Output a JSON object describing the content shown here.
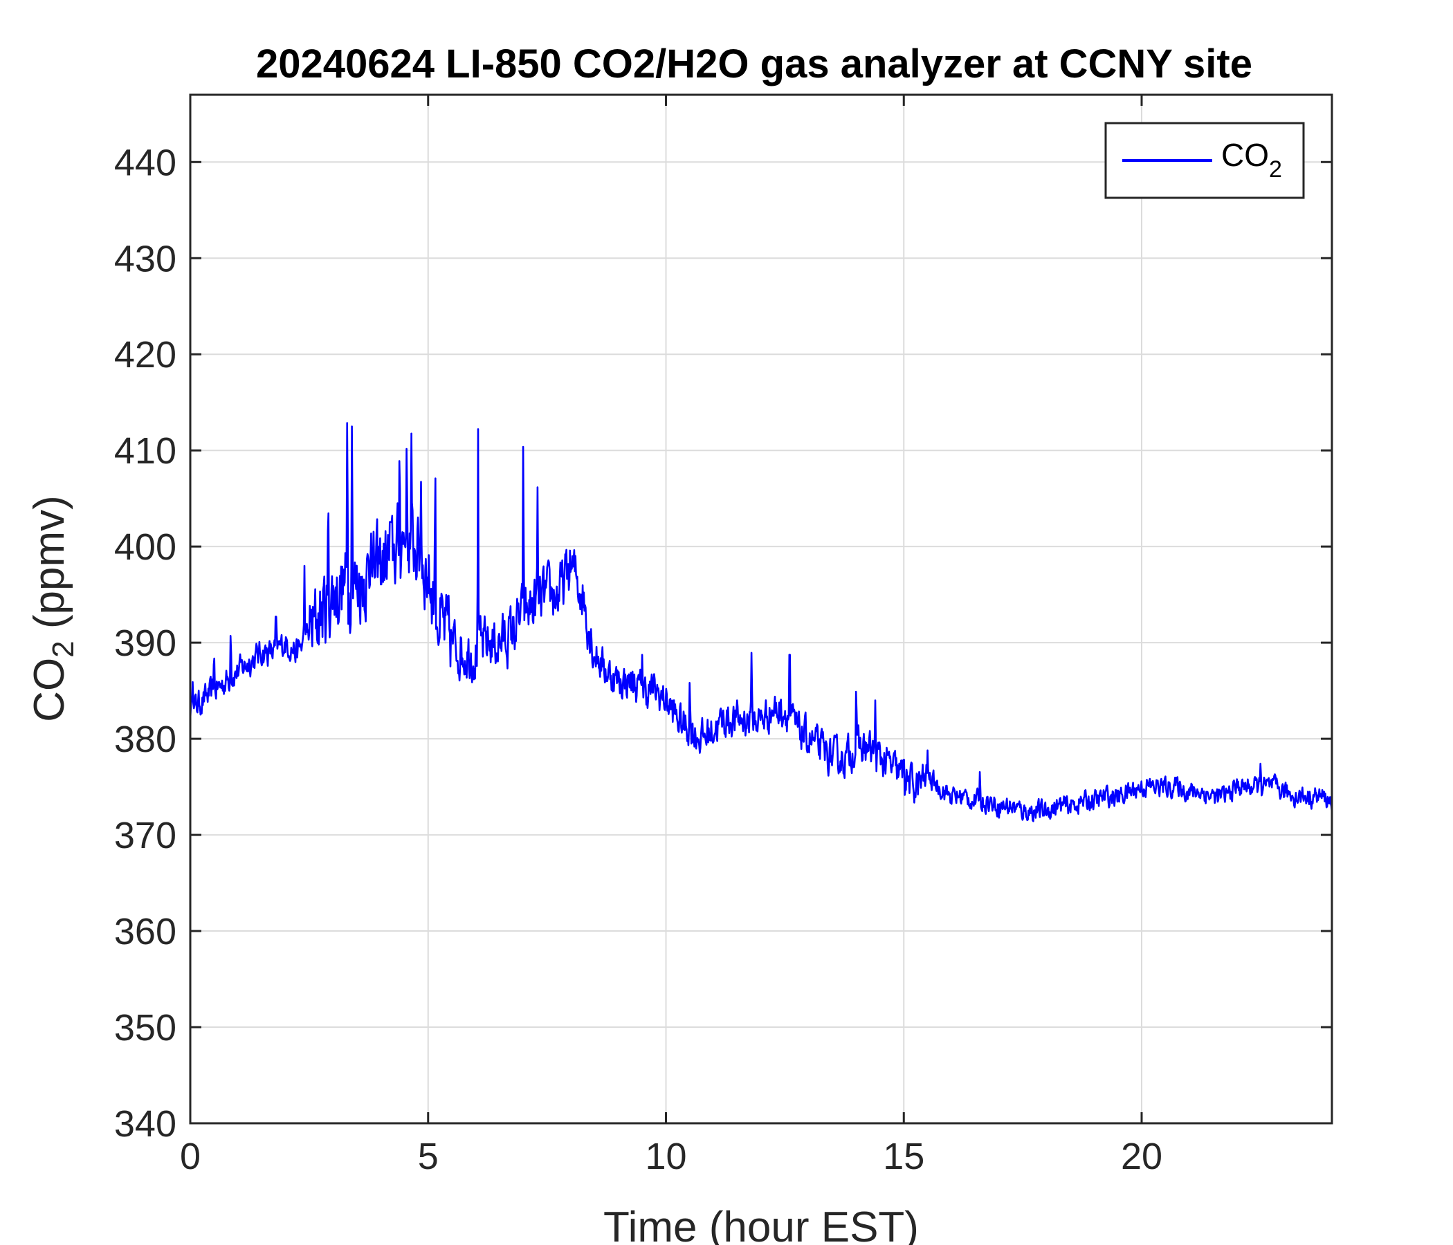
{
  "chart_data": {
    "type": "line",
    "title": "20240624 LI-850 CO2/H2O gas analyzer at CCNY site",
    "xlabel": "Time (hour EST)",
    "ylabel": {
      "main": "CO",
      "subscript": "2",
      "suffix": " (ppmv)"
    },
    "xlim": [
      0,
      24
    ],
    "ylim": [
      340,
      447
    ],
    "xticks": [
      0,
      5,
      10,
      15,
      20
    ],
    "yticks": [
      340,
      350,
      360,
      370,
      380,
      390,
      400,
      410,
      420,
      430,
      440
    ],
    "grid": true,
    "legend_position": "top-right",
    "series": [
      {
        "name": {
          "main": "CO",
          "subscript": "2"
        },
        "color": "#0000FF",
        "x": [
          0,
          0.25,
          0.5,
          0.75,
          1.0,
          1.25,
          1.5,
          1.75,
          2.0,
          2.25,
          2.5,
          2.75,
          3.0,
          3.25,
          3.5,
          3.75,
          4.0,
          4.25,
          4.5,
          4.75,
          5.0,
          5.25,
          5.5,
          5.75,
          6.0,
          6.25,
          6.5,
          6.75,
          7.0,
          7.25,
          7.5,
          7.75,
          8.0,
          8.25,
          8.5,
          8.75,
          9.0,
          9.25,
          9.5,
          9.75,
          10.0,
          10.25,
          10.5,
          10.75,
          11.0,
          11.25,
          11.5,
          11.75,
          12.0,
          12.25,
          12.5,
          12.75,
          13.0,
          13.25,
          13.5,
          13.75,
          14.0,
          14.25,
          14.5,
          14.75,
          15.0,
          15.25,
          15.5,
          15.75,
          16.0,
          16.25,
          16.5,
          16.75,
          17.0,
          17.25,
          17.5,
          17.75,
          18.0,
          18.25,
          18.5,
          18.75,
          19.0,
          19.25,
          19.5,
          19.75,
          20.0,
          20.25,
          20.5,
          20.75,
          21.0,
          21.25,
          21.5,
          21.75,
          22.0,
          22.25,
          22.5,
          22.75,
          23.0,
          23.25,
          23.5,
          23.75,
          24.0
        ],
        "y": [
          383,
          384,
          385,
          386,
          387,
          388,
          389,
          389,
          390,
          389,
          391,
          393,
          395,
          396,
          396,
          397,
          398,
          399,
          401,
          400,
          397,
          392,
          390,
          389,
          389,
          390,
          390,
          391,
          393,
          394,
          395,
          395,
          398,
          395,
          389,
          387,
          386,
          386,
          385,
          385,
          384,
          382,
          381,
          380,
          381,
          382,
          382,
          382,
          382,
          383,
          383,
          381,
          380,
          379,
          378,
          378,
          379,
          379,
          378,
          377,
          376,
          375,
          376,
          375,
          374,
          374,
          373.5,
          373.5,
          373,
          373,
          372.5,
          372.5,
          372.5,
          373,
          373,
          373.5,
          373.5,
          374,
          374,
          374.5,
          375,
          375,
          375,
          375,
          374.5,
          374.5,
          374,
          374,
          375,
          375,
          375,
          375,
          374.5,
          374,
          374,
          374,
          373.5
        ],
        "spikes": [
          {
            "x": 0.05,
            "y": 386
          },
          {
            "x": 0.5,
            "y": 390
          },
          {
            "x": 0.85,
            "y": 392
          },
          {
            "x": 1.8,
            "y": 395
          },
          {
            "x": 2.4,
            "y": 398
          },
          {
            "x": 2.9,
            "y": 408
          },
          {
            "x": 3.3,
            "y": 417
          },
          {
            "x": 3.4,
            "y": 415
          },
          {
            "x": 3.8,
            "y": 402
          },
          {
            "x": 4.2,
            "y": 405
          },
          {
            "x": 4.4,
            "y": 412
          },
          {
            "x": 4.55,
            "y": 412
          },
          {
            "x": 4.65,
            "y": 413
          },
          {
            "x": 4.85,
            "y": 407
          },
          {
            "x": 5.15,
            "y": 411
          },
          {
            "x": 6.05,
            "y": 413
          },
          {
            "x": 7.0,
            "y": 413
          },
          {
            "x": 7.3,
            "y": 407
          },
          {
            "x": 7.9,
            "y": 400
          },
          {
            "x": 9.5,
            "y": 389
          },
          {
            "x": 10.5,
            "y": 387
          },
          {
            "x": 11.8,
            "y": 390
          },
          {
            "x": 12.6,
            "y": 393
          },
          {
            "x": 14.0,
            "y": 387
          },
          {
            "x": 14.4,
            "y": 384
          },
          {
            "x": 15.0,
            "y": 379
          },
          {
            "x": 15.5,
            "y": 379
          },
          {
            "x": 16.6,
            "y": 377
          },
          {
            "x": 22.5,
            "y": 378
          }
        ]
      }
    ]
  }
}
